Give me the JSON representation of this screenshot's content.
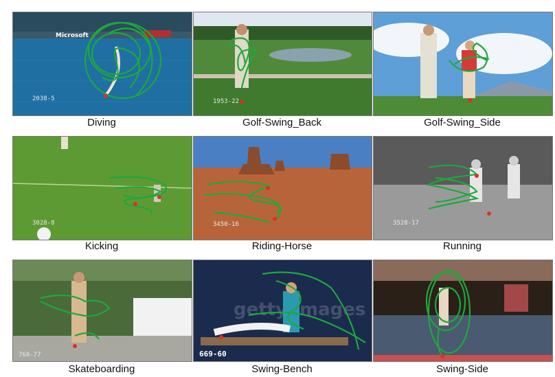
{
  "figure": {
    "panels": [
      {
        "id": "diving",
        "caption": "Diving",
        "stamp": "2038-5",
        "banner": "Microsoft"
      },
      {
        "id": "golf-swing-back",
        "caption": "Golf-Swing_Back",
        "stamp": "1953-22"
      },
      {
        "id": "golf-swing-side",
        "caption": "Golf-Swing_Side"
      },
      {
        "id": "kicking",
        "caption": "Kicking",
        "stamp": "3028-8"
      },
      {
        "id": "riding-horse",
        "caption": "Riding-Horse",
        "stamp": "3450-16"
      },
      {
        "id": "running",
        "caption": "Running",
        "stamp": "3528-17"
      },
      {
        "id": "skateboarding",
        "caption": "Skateboarding",
        "stamp": "768-77"
      },
      {
        "id": "swing-bench",
        "caption": "Swing-Bench",
        "stamp": "669-60",
        "watermark": "getty images"
      },
      {
        "id": "swing-side",
        "caption": "Swing-Side"
      }
    ],
    "colors": {
      "trajectory": "#1ea83c",
      "endpoint": "#e0301e"
    }
  }
}
